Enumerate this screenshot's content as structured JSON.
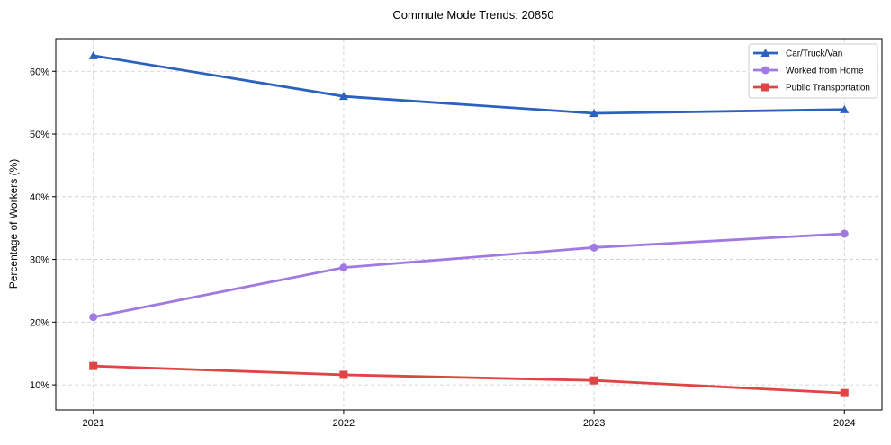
{
  "chart_data": {
    "type": "line",
    "title": "Commute Mode Trends: 20850",
    "xlabel": "",
    "ylabel": "Percentage of Workers (%)",
    "x": [
      2021,
      2022,
      2023,
      2024
    ],
    "x_tick_labels": [
      "2021",
      "2022",
      "2023",
      "2024"
    ],
    "xlim": [
      2020.85,
      2024.15
    ],
    "ylim": [
      6.0,
      65.2
    ],
    "y_ticks": [
      10,
      20,
      30,
      40,
      50,
      60
    ],
    "y_tick_labels": [
      "10%",
      "20%",
      "30%",
      "40%",
      "50%",
      "60%"
    ],
    "grid": true,
    "legend_position": "top-right",
    "series": [
      {
        "name": "Car/Truck/Van",
        "values": [
          62.5,
          56.0,
          53.3,
          53.9
        ],
        "color": "#2a62bd",
        "marker": "triangle"
      },
      {
        "name": "Worked from Home",
        "values": [
          20.8,
          28.7,
          31.9,
          34.1
        ],
        "color": "#a07ae0",
        "marker": "circle"
      },
      {
        "name": "Public Transportation",
        "values": [
          13.0,
          11.6,
          10.7,
          8.7
        ],
        "color": "#e04444",
        "marker": "square"
      }
    ]
  }
}
